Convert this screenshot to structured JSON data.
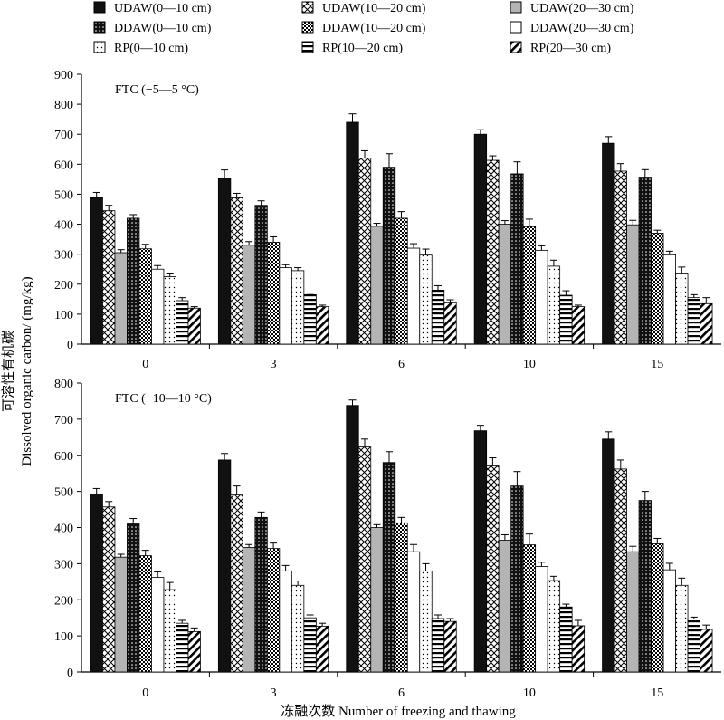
{
  "chart_data": {
    "type": "bar",
    "legend": {
      "placement": "top",
      "entries": [
        {
          "label": "UDAW(0—10 cm)",
          "pattern": "solid"
        },
        {
          "label": "UDAW(10—20 cm)",
          "pattern": "crosshatch"
        },
        {
          "label": "UDAW(20—30 cm)",
          "pattern": "gray"
        },
        {
          "label": "DDAW(0—10 cm)",
          "pattern": "dots"
        },
        {
          "label": "DDAW(10—20 cm)",
          "pattern": "checker"
        },
        {
          "label": "DDAW(20—30 cm)",
          "pattern": "white"
        },
        {
          "label": "RP(0—10 cm)",
          "pattern": "sparse-dots"
        },
        {
          "label": "RP(10—20 cm)",
          "pattern": "horizontal-lines"
        },
        {
          "label": "RP(20—30 cm)",
          "pattern": "diagonal-lines"
        }
      ]
    },
    "ylabel_cn": "可溶性有机碳",
    "ylabel_en": "Dissolved organic carbon/ (mg/kg)",
    "xlabel": "冻融次数  Number of freezing and thawing",
    "categories": [
      "0",
      "3",
      "6",
      "10",
      "15"
    ],
    "panels": [
      {
        "title": "FTC (−5—5 °C)",
        "ylim": [
          0,
          900
        ],
        "yticks": [
          0,
          100,
          200,
          300,
          400,
          500,
          600,
          700,
          800,
          900
        ],
        "values": [
          [
            488,
            445,
            305,
            420,
            318,
            250,
            225,
            145,
            120
          ],
          [
            553,
            488,
            330,
            463,
            340,
            255,
            245,
            165,
            125
          ],
          [
            740,
            620,
            393,
            590,
            420,
            320,
            297,
            180,
            138
          ],
          [
            700,
            613,
            400,
            568,
            392,
            313,
            260,
            163,
            125
          ],
          [
            670,
            577,
            398,
            557,
            370,
            298,
            237,
            155,
            135
          ]
        ],
        "errors": [
          [
            18,
            18,
            10,
            12,
            15,
            12,
            12,
            10,
            5
          ],
          [
            28,
            15,
            12,
            15,
            18,
            10,
            10,
            5,
            5
          ],
          [
            28,
            25,
            10,
            45,
            22,
            15,
            20,
            15,
            10
          ],
          [
            15,
            15,
            12,
            40,
            25,
            15,
            20,
            15,
            5
          ],
          [
            22,
            25,
            15,
            25,
            10,
            12,
            20,
            10,
            20
          ]
        ]
      },
      {
        "title": "FTC (−10—10 °C)",
        "ylim": [
          0,
          800
        ],
        "yticks": [
          0,
          100,
          200,
          300,
          400,
          500,
          600,
          700,
          800
        ],
        "values": [
          [
            493,
            457,
            318,
            410,
            322,
            262,
            228,
            135,
            112
          ],
          [
            587,
            490,
            345,
            428,
            342,
            280,
            240,
            150,
            127
          ],
          [
            738,
            623,
            400,
            580,
            413,
            333,
            280,
            148,
            140
          ],
          [
            668,
            573,
            365,
            515,
            352,
            292,
            253,
            180,
            128
          ],
          [
            645,
            562,
            333,
            475,
            355,
            283,
            240,
            147,
            118
          ]
        ],
        "errors": [
          [
            15,
            15,
            8,
            15,
            15,
            15,
            20,
            8,
            10
          ],
          [
            18,
            25,
            8,
            15,
            15,
            15,
            12,
            8,
            8
          ],
          [
            15,
            22,
            8,
            30,
            15,
            20,
            20,
            10,
            8
          ],
          [
            15,
            20,
            15,
            40,
            30,
            12,
            12,
            8,
            15
          ],
          [
            20,
            25,
            15,
            25,
            15,
            18,
            20,
            5,
            12
          ]
        ]
      }
    ]
  }
}
